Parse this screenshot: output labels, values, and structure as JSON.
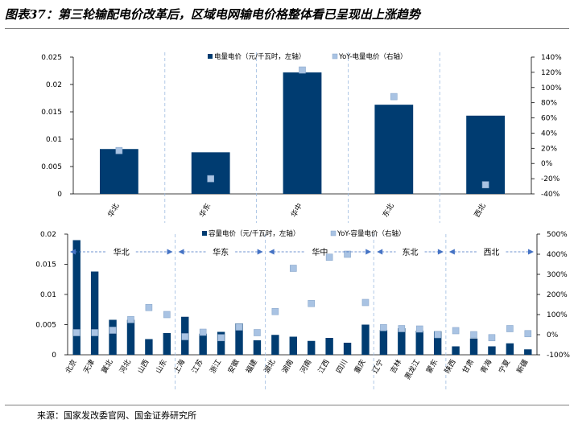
{
  "title": "图表37：第三轮输配电价改革后，区域电网输电价格整体看已呈现出上涨趋势",
  "source": "来源：国家发改委官网、国金证券研究所",
  "colors": {
    "bar": "#003c71",
    "marker": "#a9c3e3",
    "marker_stroke": "#8aa8cc",
    "divider": "#9dbbe0",
    "arrow": "#4472c4"
  },
  "chart_data": [
    {
      "type": "bar",
      "categories": [
        "华北",
        "华东",
        "华中",
        "东北",
        "西北"
      ],
      "series": [
        {
          "name": "电量电价（元/千瓦时，左轴）",
          "axis": "left",
          "values": [
            0.0082,
            0.0076,
            0.0222,
            0.0163,
            0.0143
          ]
        },
        {
          "name": "YoY-电量电价（右轴）",
          "axis": "right",
          "type": "scatter",
          "values": [
            17,
            -20,
            123,
            88,
            -28
          ]
        }
      ],
      "ylim": [
        0,
        0.025
      ],
      "yticks": [
        "0",
        "0.005",
        "0.01",
        "0.015",
        "0.02",
        "0.025"
      ],
      "y2lim": [
        -40,
        140
      ],
      "y2ticks": [
        "-40%",
        "-20%",
        "0%",
        "20%",
        "40%",
        "60%",
        "80%",
        "100%",
        "120%",
        "140%"
      ],
      "legend_position": "top"
    },
    {
      "type": "bar",
      "categories": [
        "北京",
        "天津",
        "冀北",
        "河北",
        "山西",
        "山东",
        "上海",
        "江苏",
        "浙江",
        "安徽",
        "福建",
        "湖北",
        "湖南",
        "河南",
        "江西",
        "四川",
        "重庆",
        "辽宁",
        "吉林",
        "黑龙江",
        "蒙东",
        "陕西",
        "甘肃",
        "青海",
        "宁夏",
        "新疆"
      ],
      "groups": [
        {
          "label": "华北",
          "from": 0,
          "to": 5
        },
        {
          "label": "华东",
          "from": 6,
          "to": 10
        },
        {
          "label": "华中",
          "from": 11,
          "to": 16
        },
        {
          "label": "东北",
          "from": 17,
          "to": 20
        },
        {
          "label": "西北",
          "from": 21,
          "to": 25
        }
      ],
      "series": [
        {
          "name": "容量电价（元/千瓦时，左轴）",
          "axis": "left",
          "values": [
            0.019,
            0.0138,
            0.0058,
            0.0058,
            0.0026,
            0.0036,
            0.0063,
            0.0035,
            0.0038,
            0.0052,
            0.0024,
            0.0033,
            0.003,
            0.0023,
            0.0028,
            0.002,
            0.005,
            0.0041,
            0.0044,
            0.004,
            0.0039,
            0.0014,
            0.0027,
            0.0014,
            0.0019,
            0.0009
          ]
        },
        {
          "name": "YoY-容量电价（右轴）",
          "axis": "right",
          "type": "scatter",
          "values": [
            10,
            10,
            22,
            75,
            135,
            100,
            -10,
            12,
            -15,
            38,
            10,
            115,
            330,
            155,
            385,
            400,
            160,
            35,
            30,
            28,
            0,
            20,
            0,
            -15,
            30,
            5
          ]
        }
      ],
      "ylim": [
        0,
        0.02
      ],
      "yticks": [
        "0",
        "0.005",
        "0.01",
        "0.015",
        "0.02"
      ],
      "y2lim": [
        -100,
        500
      ],
      "y2ticks": [
        "-100%",
        "0%",
        "100%",
        "200%",
        "300%",
        "400%",
        "500%"
      ],
      "legend_position": "top"
    }
  ]
}
